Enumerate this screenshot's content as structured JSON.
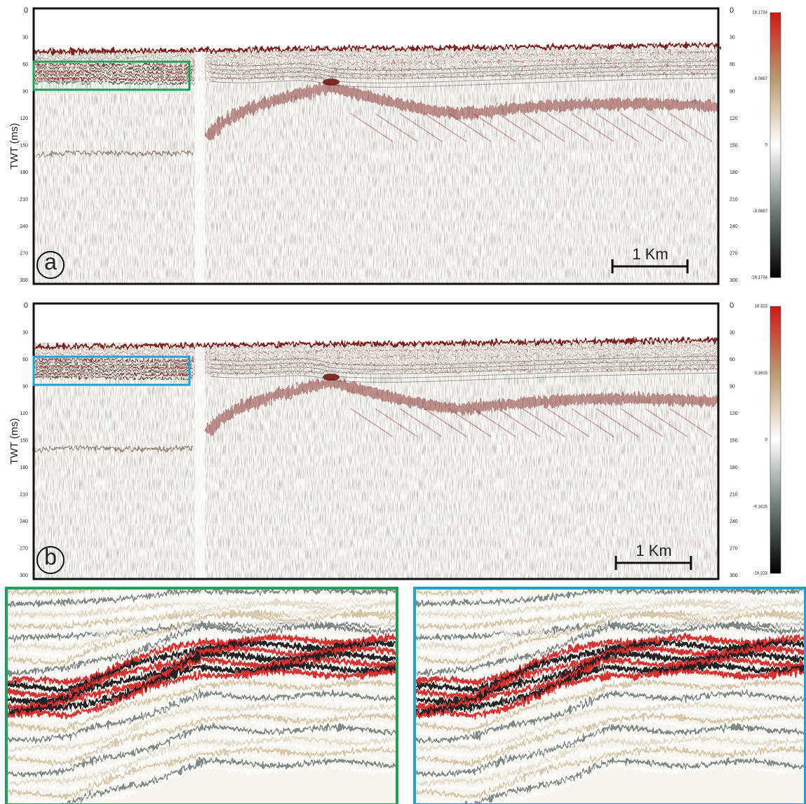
{
  "figure": {
    "y_axis_label": "TWT (ms)",
    "panels": [
      {
        "label": "a",
        "ticks": [
          0,
          30,
          60,
          90,
          120,
          150,
          180,
          210,
          240,
          270,
          300
        ],
        "colorbar": [
          "18.1734",
          "9.0867",
          "0",
          "-9.0867",
          "-18.1734"
        ],
        "scale_bar": "1 Km"
      },
      {
        "label": "b",
        "ticks": [
          0,
          30,
          60,
          90,
          120,
          150,
          180,
          210,
          240,
          270,
          300
        ],
        "colorbar": [
          "18.323",
          "9.1615",
          "0",
          "-9.1615",
          "-18.323"
        ],
        "scale_bar": "1 Km"
      }
    ]
  }
}
